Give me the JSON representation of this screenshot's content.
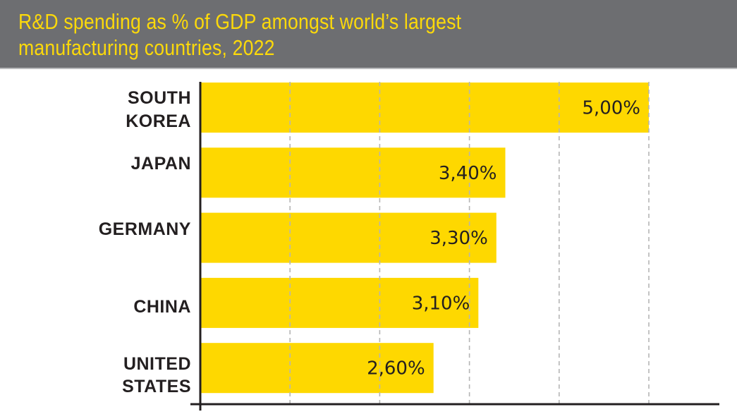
{
  "header": {
    "title_line_1": "R&D spending as % of GDP amongst world’s largest",
    "title_line_2": "manufacturing countries, 2022"
  },
  "colors": {
    "header_background": "#6d6e71",
    "title_text": "#fcd90a",
    "bar": "#fed800",
    "axis": "#231f20",
    "gridline": "#b5b5b5",
    "label_text": "#231f20"
  },
  "chart_data": {
    "type": "bar",
    "orientation": "horizontal",
    "title": "R&D spending as % of GDP amongst world’s largest manufacturing countries, 2022",
    "xlabel": "",
    "ylabel": "",
    "categories": [
      [
        "SOUTH",
        "KOREA"
      ],
      [
        "JAPAN"
      ],
      [
        "GERMANY"
      ],
      [
        "CHINA"
      ],
      [
        "UNITED",
        "STATES"
      ]
    ],
    "values": [
      5.0,
      3.4,
      3.3,
      3.1,
      2.6
    ],
    "data_labels": [
      "5,00%",
      "3,40%",
      "3,30%",
      "3,10%",
      "2,60%"
    ],
    "unit": "% of GDP",
    "xlim": [
      0,
      5.5
    ],
    "gridlines_at": [
      1,
      2,
      3,
      4,
      5
    ],
    "grid": true,
    "tick_labels_shown": false,
    "legend": "none"
  }
}
